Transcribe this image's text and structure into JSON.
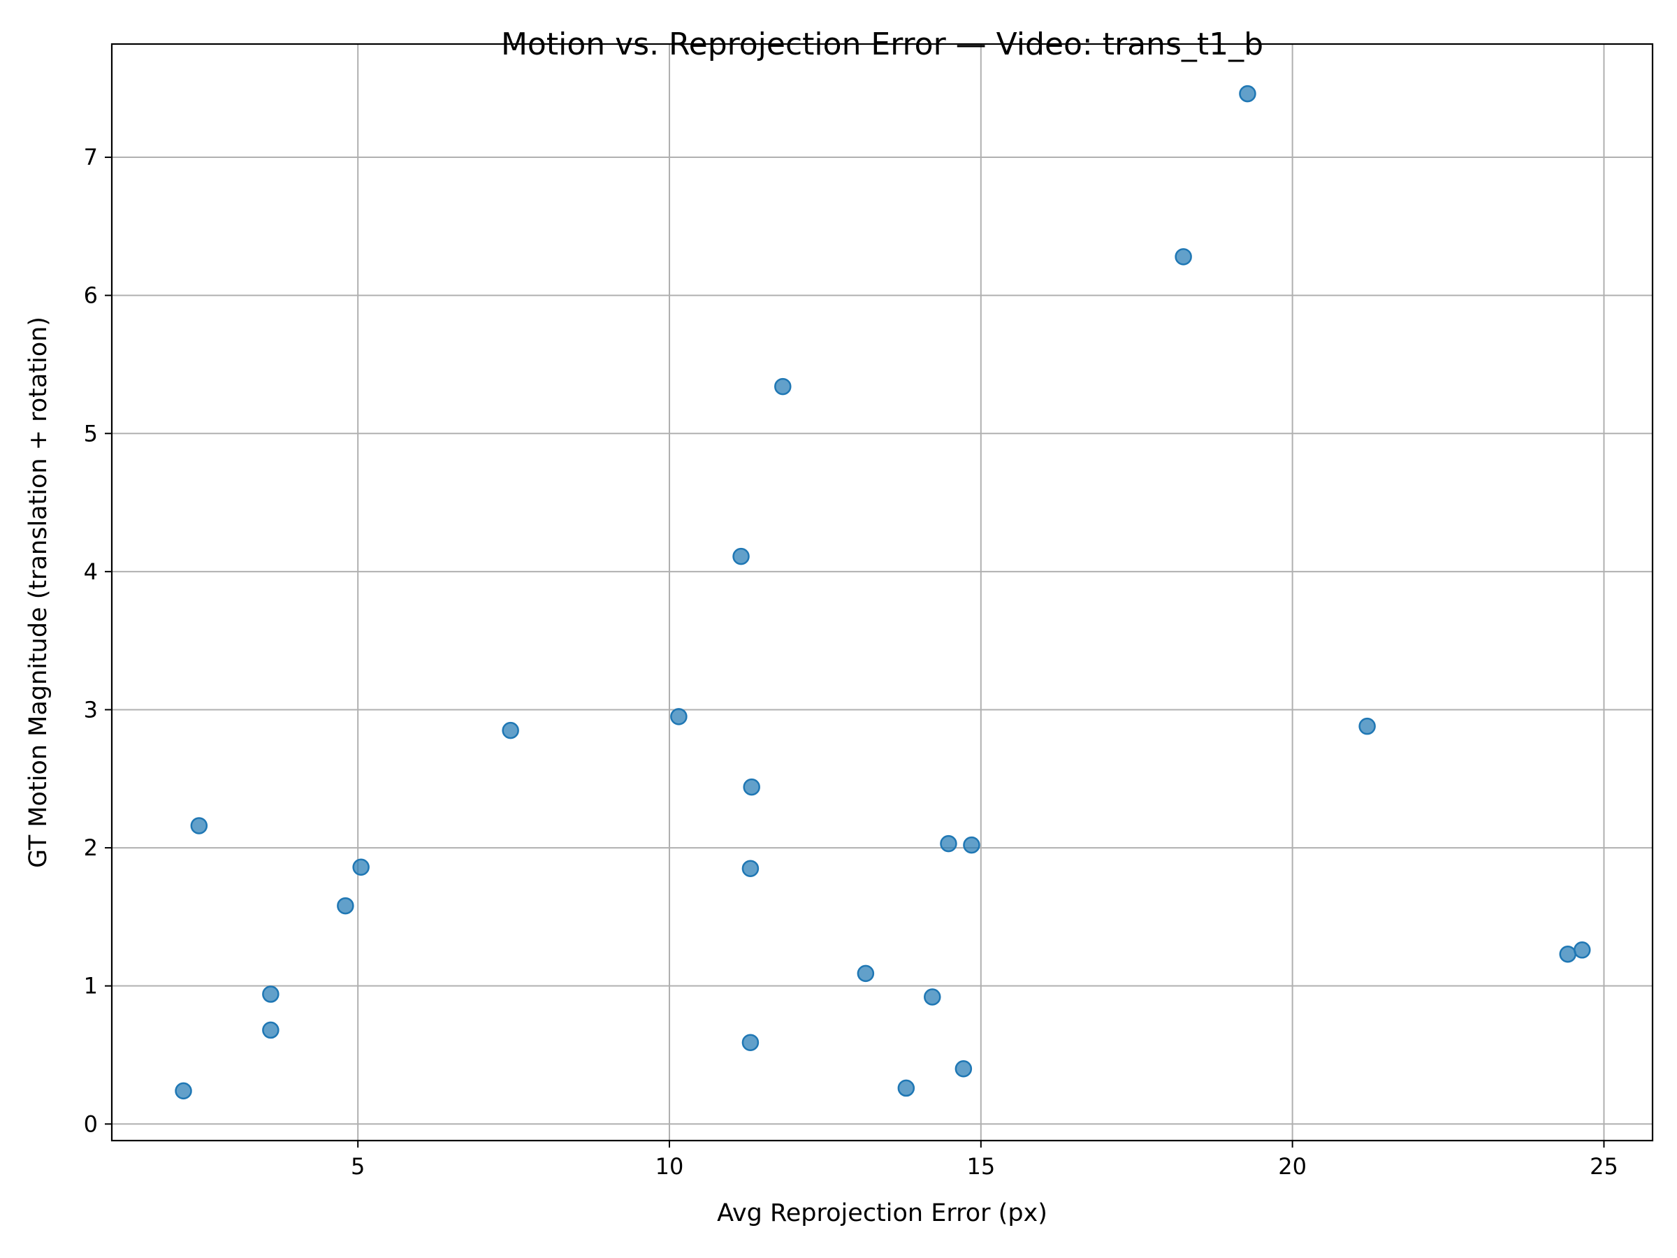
{
  "chart_data": {
    "type": "scatter",
    "title": "Motion vs. Reprojection Error — Video: trans_t1_b",
    "xlabel": "Avg Reprojection Error (px)",
    "ylabel": "GT Motion Magnitude (translation + rotation)",
    "xlim": [
      1.05,
      25.78
    ],
    "ylim": [
      -0.12,
      7.82
    ],
    "xticks": [
      5,
      10,
      15,
      20,
      25
    ],
    "yticks": [
      0,
      1,
      2,
      3,
      4,
      5,
      6,
      7
    ],
    "grid": true,
    "marker_color": "#1f77b4",
    "marker_alpha": 0.7,
    "points": [
      {
        "x": 2.2,
        "y": 0.24
      },
      {
        "x": 2.45,
        "y": 2.16
      },
      {
        "x": 3.6,
        "y": 0.68
      },
      {
        "x": 3.6,
        "y": 0.94
      },
      {
        "x": 4.8,
        "y": 1.58
      },
      {
        "x": 5.05,
        "y": 1.86
      },
      {
        "x": 7.45,
        "y": 2.85
      },
      {
        "x": 10.15,
        "y": 2.95
      },
      {
        "x": 11.15,
        "y": 4.11
      },
      {
        "x": 11.3,
        "y": 0.59
      },
      {
        "x": 11.3,
        "y": 1.85
      },
      {
        "x": 11.32,
        "y": 2.44
      },
      {
        "x": 11.82,
        "y": 5.34
      },
      {
        "x": 13.15,
        "y": 1.09
      },
      {
        "x": 13.8,
        "y": 0.26
      },
      {
        "x": 14.22,
        "y": 0.92
      },
      {
        "x": 14.48,
        "y": 2.03
      },
      {
        "x": 14.72,
        "y": 0.4
      },
      {
        "x": 14.85,
        "y": 2.02
      },
      {
        "x": 18.25,
        "y": 6.28
      },
      {
        "x": 19.28,
        "y": 7.46
      },
      {
        "x": 21.2,
        "y": 2.88
      },
      {
        "x": 24.42,
        "y": 1.23
      },
      {
        "x": 24.65,
        "y": 1.26
      }
    ]
  }
}
